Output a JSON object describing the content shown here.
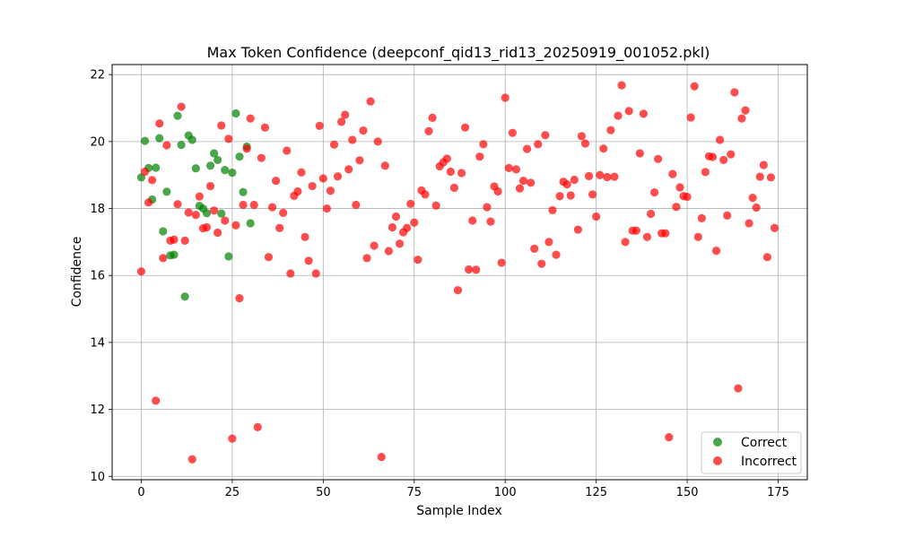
{
  "chart_data": {
    "type": "scatter",
    "title": "Max Token Confidence (deepconf_qid13_rid13_20250919_001052.pkl)",
    "xlabel": "Sample Index",
    "ylabel": "Confidence",
    "xlim": [
      -8,
      183
    ],
    "ylim": [
      9.9,
      22.3
    ],
    "xticks": [
      0,
      25,
      50,
      75,
      100,
      125,
      150,
      175
    ],
    "yticks": [
      10,
      12,
      14,
      16,
      18,
      20,
      22
    ],
    "grid": true,
    "legend_position": "lower right",
    "series": [
      {
        "name": "Correct",
        "color": "#008000",
        "points": [
          [
            0,
            18.93
          ],
          [
            1,
            20.02
          ],
          [
            2,
            19.21
          ],
          [
            3,
            18.27
          ],
          [
            4,
            19.22
          ],
          [
            5,
            20.1
          ],
          [
            6,
            17.32
          ],
          [
            7,
            18.5
          ],
          [
            8,
            16.6
          ],
          [
            9,
            16.62
          ],
          [
            10,
            20.77
          ],
          [
            11,
            19.9
          ],
          [
            12,
            15.37
          ],
          [
            13,
            20.18
          ],
          [
            14,
            20.05
          ],
          [
            15,
            19.2
          ],
          [
            16,
            18.08
          ],
          [
            17,
            18.0
          ],
          [
            18,
            17.86
          ],
          [
            19,
            19.28
          ],
          [
            20,
            19.65
          ],
          [
            21,
            19.45
          ],
          [
            22,
            17.85
          ],
          [
            23,
            19.15
          ],
          [
            24,
            16.57
          ],
          [
            25,
            19.07
          ],
          [
            26,
            20.84
          ],
          [
            27,
            19.55
          ],
          [
            28,
            18.49
          ],
          [
            29,
            19.85
          ],
          [
            30,
            17.56
          ]
        ]
      },
      {
        "name": "Incorrect",
        "color": "#ff0000",
        "points": [
          [
            0,
            16.12
          ],
          [
            1,
            19.1
          ],
          [
            2,
            18.18
          ],
          [
            3,
            18.85
          ],
          [
            4,
            12.26
          ],
          [
            5,
            20.54
          ],
          [
            6,
            16.52
          ],
          [
            7,
            19.89
          ],
          [
            8,
            17.04
          ],
          [
            9,
            17.07
          ],
          [
            10,
            18.13
          ],
          [
            11,
            21.04
          ],
          [
            12,
            17.04
          ],
          [
            13,
            17.88
          ],
          [
            14,
            10.51
          ],
          [
            15,
            17.81
          ],
          [
            16,
            18.36
          ],
          [
            17,
            17.41
          ],
          [
            18,
            17.44
          ],
          [
            19,
            18.67
          ],
          [
            20,
            17.94
          ],
          [
            21,
            17.28
          ],
          [
            22,
            20.48
          ],
          [
            23,
            17.64
          ],
          [
            24,
            20.08
          ],
          [
            25,
            11.13
          ],
          [
            26,
            17.5
          ],
          [
            27,
            15.32
          ],
          [
            28,
            18.11
          ],
          [
            29,
            19.79
          ],
          [
            30,
            20.69
          ],
          [
            31,
            18.11
          ],
          [
            32,
            11.47
          ],
          [
            33,
            19.51
          ],
          [
            34,
            20.42
          ],
          [
            35,
            16.55
          ],
          [
            36,
            18.04
          ],
          [
            37,
            18.83
          ],
          [
            38,
            17.42
          ],
          [
            39,
            17.87
          ],
          [
            40,
            19.73
          ],
          [
            41,
            16.06
          ],
          [
            42,
            18.38
          ],
          [
            43,
            18.51
          ],
          [
            44,
            19.08
          ],
          [
            45,
            17.15
          ],
          [
            46,
            16.44
          ],
          [
            47,
            18.67
          ],
          [
            48,
            16.06
          ],
          [
            49,
            20.47
          ],
          [
            50,
            18.9
          ],
          [
            51,
            18.0
          ],
          [
            52,
            18.53
          ],
          [
            53,
            19.91
          ],
          [
            54,
            18.96
          ],
          [
            55,
            20.59
          ],
          [
            56,
            20.8
          ],
          [
            57,
            19.17
          ],
          [
            58,
            20.05
          ],
          [
            59,
            18.11
          ],
          [
            60,
            19.44
          ],
          [
            61,
            20.33
          ],
          [
            62,
            16.52
          ],
          [
            63,
            21.2
          ],
          [
            64,
            16.89
          ],
          [
            65,
            20.0
          ],
          [
            66,
            10.58
          ],
          [
            67,
            19.28
          ],
          [
            68,
            16.73
          ],
          [
            69,
            17.44
          ],
          [
            70,
            17.76
          ],
          [
            71,
            16.95
          ],
          [
            72,
            17.29
          ],
          [
            73,
            17.42
          ],
          [
            74,
            18.14
          ],
          [
            75,
            17.58
          ],
          [
            76,
            16.47
          ],
          [
            77,
            18.54
          ],
          [
            78,
            18.42
          ],
          [
            79,
            20.31
          ],
          [
            80,
            20.71
          ],
          [
            81,
            18.09
          ],
          [
            82,
            19.26
          ],
          [
            83,
            19.38
          ],
          [
            84,
            19.49
          ],
          [
            85,
            19.1
          ],
          [
            86,
            18.62
          ],
          [
            87,
            15.56
          ],
          [
            88,
            19.06
          ],
          [
            89,
            20.42
          ],
          [
            90,
            16.18
          ],
          [
            91,
            17.64
          ],
          [
            92,
            16.17
          ],
          [
            93,
            19.55
          ],
          [
            94,
            19.92
          ],
          [
            95,
            18.04
          ],
          [
            96,
            17.61
          ],
          [
            97,
            18.66
          ],
          [
            98,
            18.51
          ],
          [
            99,
            16.38
          ],
          [
            100,
            21.31
          ],
          [
            101,
            19.21
          ],
          [
            102,
            20.26
          ],
          [
            103,
            19.17
          ],
          [
            104,
            18.6
          ],
          [
            105,
            18.83
          ],
          [
            106,
            19.78
          ],
          [
            107,
            18.77
          ],
          [
            108,
            16.8
          ],
          [
            109,
            19.92
          ],
          [
            110,
            16.35
          ],
          [
            111,
            20.19
          ],
          [
            112,
            17.0
          ],
          [
            113,
            17.95
          ],
          [
            114,
            16.62
          ],
          [
            115,
            18.37
          ],
          [
            116,
            18.8
          ],
          [
            117,
            18.72
          ],
          [
            118,
            18.39
          ],
          [
            119,
            18.86
          ],
          [
            120,
            17.37
          ],
          [
            121,
            20.16
          ],
          [
            122,
            19.94
          ],
          [
            123,
            18.97
          ],
          [
            124,
            18.42
          ],
          [
            125,
            17.76
          ],
          [
            126,
            19.0
          ],
          [
            127,
            19.79
          ],
          [
            128,
            18.94
          ],
          [
            129,
            20.34
          ],
          [
            130,
            18.95
          ],
          [
            131,
            20.77
          ],
          [
            132,
            21.68
          ],
          [
            133,
            17.0
          ],
          [
            134,
            20.91
          ],
          [
            135,
            17.34
          ],
          [
            136,
            17.34
          ],
          [
            137,
            19.65
          ],
          [
            138,
            20.83
          ],
          [
            139,
            17.15
          ],
          [
            140,
            17.84
          ],
          [
            141,
            18.48
          ],
          [
            142,
            19.48
          ],
          [
            143,
            17.26
          ],
          [
            144,
            17.26
          ],
          [
            145,
            11.17
          ],
          [
            146,
            19.03
          ],
          [
            147,
            18.05
          ],
          [
            148,
            18.63
          ],
          [
            149,
            18.37
          ],
          [
            150,
            18.35
          ],
          [
            151,
            20.72
          ],
          [
            152,
            21.65
          ],
          [
            153,
            17.15
          ],
          [
            154,
            17.71
          ],
          [
            155,
            19.09
          ],
          [
            156,
            19.56
          ],
          [
            157,
            19.54
          ],
          [
            158,
            16.74
          ],
          [
            159,
            20.05
          ],
          [
            160,
            19.45
          ],
          [
            161,
            17.79
          ],
          [
            162,
            19.62
          ],
          [
            163,
            21.47
          ],
          [
            164,
            12.63
          ],
          [
            165,
            20.69
          ],
          [
            166,
            20.93
          ],
          [
            167,
            17.56
          ],
          [
            168,
            18.32
          ],
          [
            169,
            18.03
          ],
          [
            170,
            18.95
          ],
          [
            171,
            19.3
          ],
          [
            172,
            16.55
          ],
          [
            173,
            18.93
          ],
          [
            174,
            17.42
          ]
        ]
      }
    ]
  }
}
